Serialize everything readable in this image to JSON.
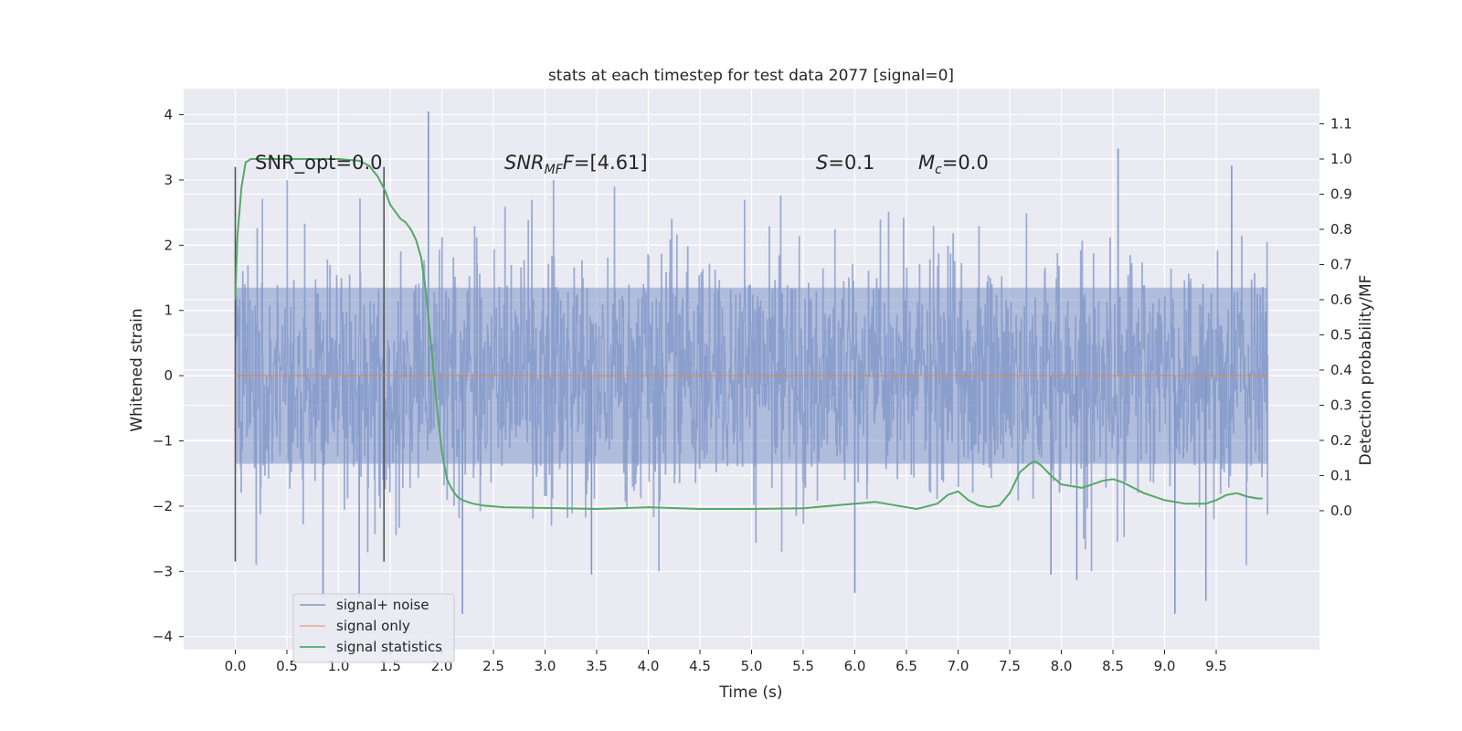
{
  "chart_data": {
    "type": "line",
    "title": "stats at each timestep for test data 2077 [signal=0]",
    "xlabel": "Time (s)",
    "ylabel_left": "Whitened strain",
    "ylabel_right": "Detection probability/MF",
    "xlim": [
      -0.5,
      10.5
    ],
    "ylim_left": [
      -4.2,
      4.4
    ],
    "ylim_right": [
      -0.395,
      1.2
    ],
    "x_ticks": [
      "0.0",
      "0.5",
      "1.0",
      "1.5",
      "2.0",
      "2.5",
      "3.0",
      "3.5",
      "4.0",
      "4.5",
      "5.0",
      "5.5",
      "6.0",
      "6.5",
      "7.0",
      "7.5",
      "8.0",
      "8.5",
      "9.0",
      "9.5"
    ],
    "y_ticks_left": [
      "4",
      "3",
      "2",
      "1",
      "0",
      "−1",
      "−2",
      "−3",
      "−4"
    ],
    "y_ticks_right": [
      "1.1",
      "1.0",
      "0.9",
      "0.8",
      "0.7",
      "0.6",
      "0.5",
      "0.4",
      "0.3",
      "0.2",
      "0.1",
      "0.0"
    ],
    "grid": true,
    "legend_position": "lower-left",
    "vertical_markers_x": [
      0.0,
      1.44
    ],
    "annotations": {
      "snr_opt": "SNR_opt=0.0",
      "snr_mf_main": "SNR",
      "snr_mf_sub": "MF",
      "snr_mf_value": "=[4.61]",
      "s_main": "S",
      "s_value": "=0.1",
      "mc_main": "M",
      "mc_sub": "c",
      "mc_value": "=0.0"
    },
    "series": [
      {
        "name": "signal+ noise",
        "axis": "left",
        "color": "#7f96c8",
        "style": "dense noise, approx ±1.3 core, spikes up to 4.05 at x≈1.87, down to −3.65 at x≈9.1",
        "spikes": [
          [
            1.87,
            4.05
          ],
          [
            8.55,
            3.48
          ],
          [
            9.65,
            3.22
          ],
          [
            0.85,
            -3.4
          ],
          [
            1.2,
            -3.4
          ],
          [
            2.2,
            -3.65
          ],
          [
            6.0,
            -3.33
          ],
          [
            8.15,
            -3.13
          ],
          [
            9.1,
            -3.65
          ],
          [
            9.4,
            -3.45
          ],
          [
            3.45,
            -3.05
          ],
          [
            7.9,
            -3.05
          ]
        ]
      },
      {
        "name": "signal only",
        "axis": "left",
        "color": "#dd8452",
        "x": [
          0.0,
          10.0
        ],
        "y": [
          0.0,
          0.0
        ]
      },
      {
        "name": "signal statistics",
        "axis": "right",
        "color": "#55a868",
        "x": [
          0.0,
          0.02,
          0.06,
          0.1,
          0.15,
          0.2,
          0.3,
          0.5,
          0.8,
          1.0,
          1.2,
          1.3,
          1.38,
          1.45,
          1.5,
          1.55,
          1.6,
          1.65,
          1.7,
          1.75,
          1.8,
          1.85,
          1.9,
          1.95,
          2.0,
          2.05,
          2.1,
          2.15,
          2.2,
          2.3,
          2.4,
          2.6,
          3.0,
          3.5,
          4.0,
          4.5,
          5.0,
          5.5,
          6.0,
          6.2,
          6.4,
          6.6,
          6.8,
          6.9,
          7.0,
          7.1,
          7.2,
          7.3,
          7.4,
          7.5,
          7.6,
          7.7,
          7.75,
          7.8,
          7.9,
          8.0,
          8.2,
          8.4,
          8.5,
          8.6,
          8.8,
          9.0,
          9.2,
          9.4,
          9.5,
          9.6,
          9.7,
          9.8,
          9.9,
          9.95
        ],
        "y": [
          0.6,
          0.78,
          0.92,
          0.99,
          1.0,
          1.0,
          1.0,
          1.0,
          1.0,
          1.0,
          0.995,
          0.98,
          0.95,
          0.91,
          0.87,
          0.85,
          0.83,
          0.82,
          0.8,
          0.77,
          0.72,
          0.61,
          0.46,
          0.3,
          0.17,
          0.09,
          0.06,
          0.04,
          0.03,
          0.02,
          0.015,
          0.01,
          0.008,
          0.005,
          0.01,
          0.005,
          0.005,
          0.007,
          0.02,
          0.025,
          0.015,
          0.005,
          0.02,
          0.045,
          0.055,
          0.03,
          0.015,
          0.01,
          0.015,
          0.05,
          0.11,
          0.135,
          0.14,
          0.13,
          0.1,
          0.075,
          0.065,
          0.085,
          0.09,
          0.08,
          0.05,
          0.03,
          0.02,
          0.02,
          0.03,
          0.045,
          0.05,
          0.04,
          0.035,
          0.035
        ]
      }
    ]
  }
}
